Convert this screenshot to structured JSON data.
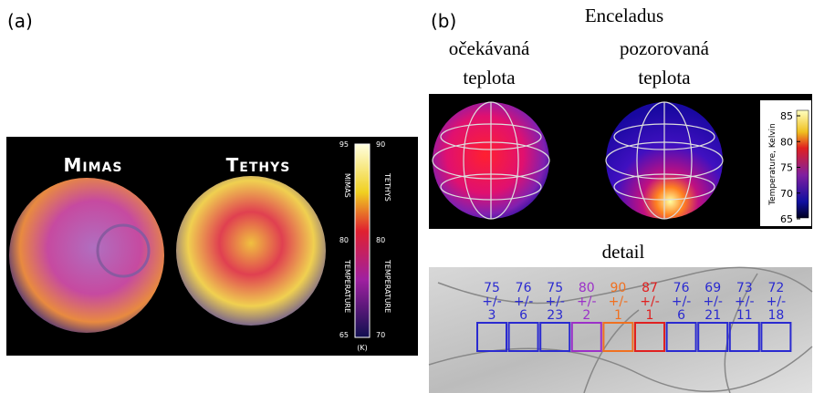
{
  "panel_a": {
    "label": "(a)",
    "titles": [
      "Mimas",
      "Tethys"
    ],
    "colorbar": {
      "left_ticks": [
        95,
        80,
        65
      ],
      "right_ticks": [
        90,
        80,
        70
      ],
      "left_name": "Mimas",
      "right_name": "Tethys",
      "quantity": "Temperature",
      "unit": "(K)"
    }
  },
  "panel_b": {
    "label": "(b)",
    "title": "Enceladus",
    "expected": "očekávaná teplota",
    "observed": "pozorovaná teplota",
    "colorbar": {
      "ticks": [
        85,
        80,
        75,
        70,
        65
      ],
      "label": "Temperature, Kelvin"
    },
    "detail": {
      "title": "detail",
      "pm": "+/-",
      "boxes": [
        {
          "value": 75,
          "error": 3,
          "color": "#2a2ad0"
        },
        {
          "value": 76,
          "error": 6,
          "color": "#2a2ad0"
        },
        {
          "value": 75,
          "error": 23,
          "color": "#2a2ad0"
        },
        {
          "value": 80,
          "error": 2,
          "color": "#9b30c8"
        },
        {
          "value": 90,
          "error": 1,
          "color": "#f07020"
        },
        {
          "value": 87,
          "error": 1,
          "color": "#e02020"
        },
        {
          "value": 76,
          "error": 6,
          "color": "#2a2ad0"
        },
        {
          "value": 69,
          "error": 21,
          "color": "#2a2ad0"
        },
        {
          "value": 73,
          "error": 11,
          "color": "#2a2ad0"
        },
        {
          "value": 72,
          "error": 18,
          "color": "#2a2ad0"
        }
      ]
    }
  }
}
